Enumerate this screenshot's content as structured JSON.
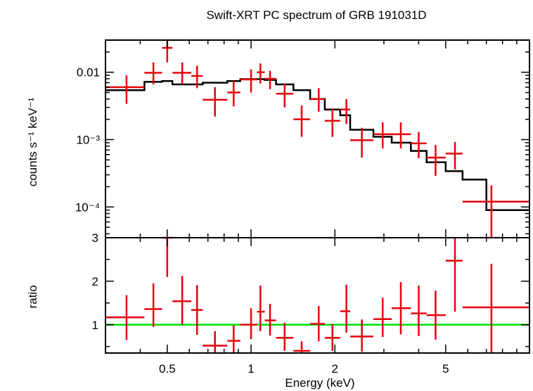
{
  "chart_data": [
    {
      "type": "scatter",
      "panel": "spectrum",
      "title": "Swift-XRT PC spectrum of GRB 191031D",
      "xlabel": "Energy (keV)",
      "ylabel": "counts s⁻¹ keV⁻¹",
      "xscale": "log",
      "yscale": "log",
      "xlim": [
        0.3,
        10
      ],
      "ylim": [
        3.5e-05,
        0.03
      ],
      "x_tick_labels": [
        "0.5",
        "1",
        "2",
        "5"
      ],
      "x_tick_values": [
        0.5,
        1,
        2,
        5
      ],
      "y_tick_labels": [
        "0.01",
        "10⁻³",
        "10⁻⁴"
      ],
      "y_tick_values": [
        0.01,
        0.001,
        0.0001
      ],
      "series": [
        {
          "kind": "data",
          "color": "#e8000b",
          "points": [
            {
              "x": 0.357,
              "xlo": 0.3,
              "xhi": 0.414,
              "y": 0.006,
              "ylo": 0.0034,
              "yhi": 0.009
            },
            {
              "x": 0.446,
              "xlo": 0.414,
              "xhi": 0.479,
              "y": 0.0098,
              "ylo": 0.0066,
              "yhi": 0.014
            },
            {
              "x": 0.5,
              "xlo": 0.479,
              "xhi": 0.522,
              "y": 0.023,
              "ylo": 0.014,
              "yhi": 0.031
            },
            {
              "x": 0.566,
              "xlo": 0.522,
              "xhi": 0.61,
              "y": 0.0098,
              "ylo": 0.0066,
              "yhi": 0.014
            },
            {
              "x": 0.64,
              "xlo": 0.61,
              "xhi": 0.67,
              "y": 0.0088,
              "ylo": 0.0058,
              "yhi": 0.0125
            },
            {
              "x": 0.742,
              "xlo": 0.67,
              "xhi": 0.822,
              "y": 0.0039,
              "ylo": 0.0022,
              "yhi": 0.006
            },
            {
              "x": 0.866,
              "xlo": 0.822,
              "xhi": 0.915,
              "y": 0.005,
              "ylo": 0.0031,
              "yhi": 0.0075
            },
            {
              "x": 1.0,
              "xlo": 0.915,
              "xhi": 1.05,
              "y": 0.0078,
              "ylo": 0.005,
              "yhi": 0.011
            },
            {
              "x": 1.08,
              "xlo": 1.05,
              "xhi": 1.12,
              "y": 0.01,
              "ylo": 0.0068,
              "yhi": 0.0135
            },
            {
              "x": 1.17,
              "xlo": 1.12,
              "xhi": 1.23,
              "y": 0.008,
              "ylo": 0.0056,
              "yhi": 0.0105
            },
            {
              "x": 1.32,
              "xlo": 1.23,
              "xhi": 1.42,
              "y": 0.0048,
              "ylo": 0.003,
              "yhi": 0.0068
            },
            {
              "x": 1.52,
              "xlo": 1.42,
              "xhi": 1.63,
              "y": 0.002,
              "ylo": 0.0011,
              "yhi": 0.0032
            },
            {
              "x": 1.75,
              "xlo": 1.63,
              "xhi": 1.84,
              "y": 0.004,
              "ylo": 0.0026,
              "yhi": 0.0058
            },
            {
              "x": 1.96,
              "xlo": 1.84,
              "xhi": 2.09,
              "y": 0.0019,
              "ylo": 0.0011,
              "yhi": 0.0029
            },
            {
              "x": 2.2,
              "xlo": 2.09,
              "xhi": 2.27,
              "y": 0.0028,
              "ylo": 0.0017,
              "yhi": 0.004
            },
            {
              "x": 2.5,
              "xlo": 2.27,
              "xhi": 2.75,
              "y": 0.00098,
              "ylo": 0.00054,
              "yhi": 0.0015
            },
            {
              "x": 2.97,
              "xlo": 2.75,
              "xhi": 3.2,
              "y": 0.0012,
              "ylo": 0.00074,
              "yhi": 0.0018
            },
            {
              "x": 3.45,
              "xlo": 3.2,
              "xhi": 3.75,
              "y": 0.0012,
              "ylo": 0.00074,
              "yhi": 0.0018
            },
            {
              "x": 4.0,
              "xlo": 3.75,
              "xhi": 4.27,
              "y": 0.00088,
              "ylo": 0.00053,
              "yhi": 0.0013
            },
            {
              "x": 4.6,
              "xlo": 4.27,
              "xhi": 5.0,
              "y": 0.00054,
              "ylo": 0.00029,
              "yhi": 0.00083
            },
            {
              "x": 5.4,
              "xlo": 5.0,
              "xhi": 5.75,
              "y": 0.00062,
              "ylo": 0.00036,
              "yhi": 0.00092
            },
            {
              "x": 7.3,
              "xlo": 5.75,
              "xhi": 10.0,
              "y": 0.00012,
              "ylo": 3.5e-05,
              "yhi": 0.00021
            }
          ]
        },
        {
          "kind": "model",
          "color": "#000000",
          "steps": [
            [
              0.3,
              0.0054
            ],
            [
              0.414,
              0.0072
            ],
            [
              0.479,
              0.0074
            ],
            [
              0.522,
              0.0066
            ],
            [
              0.67,
              0.007
            ],
            [
              0.822,
              0.0074
            ],
            [
              0.915,
              0.0079
            ],
            [
              1.12,
              0.0077
            ],
            [
              1.23,
              0.0066
            ],
            [
              1.42,
              0.0054
            ],
            [
              1.63,
              0.004
            ],
            [
              1.84,
              0.0028
            ],
            [
              2.09,
              0.0023
            ],
            [
              2.27,
              0.0014
            ],
            [
              2.75,
              0.0011
            ],
            [
              3.2,
              0.0009
            ],
            [
              3.75,
              0.00068
            ],
            [
              4.27,
              0.00046
            ],
            [
              5.0,
              0.00034
            ],
            [
              5.75,
              0.000255
            ],
            [
              7.0,
              9e-05
            ],
            [
              10.0,
              9e-05
            ]
          ]
        }
      ]
    },
    {
      "type": "scatter",
      "panel": "ratio",
      "xlabel": "Energy (keV)",
      "ylabel": "ratio",
      "xscale": "log",
      "yscale": "linear",
      "xlim": [
        0.3,
        10
      ],
      "ylim": [
        0.35,
        3.0
      ],
      "y_tick_labels": [
        "1",
        "2",
        "3"
      ],
      "y_tick_values": [
        1,
        2,
        3
      ],
      "reference_line": {
        "y": 1,
        "color": "#00e000"
      },
      "series": [
        {
          "kind": "ratio",
          "color": "#e8000b",
          "points": [
            {
              "x": 0.357,
              "xlo": 0.3,
              "xhi": 0.414,
              "y": 1.17,
              "ylo": 0.65,
              "yhi": 1.68
            },
            {
              "x": 0.446,
              "xlo": 0.414,
              "xhi": 0.479,
              "y": 1.36,
              "ylo": 0.95,
              "yhi": 1.95
            },
            {
              "x": 0.5,
              "xlo": 0.479,
              "xhi": 0.522,
              "y": 3.0,
              "ylo": 2.1,
              "yhi": 3.0
            },
            {
              "x": 0.566,
              "xlo": 0.522,
              "xhi": 0.61,
              "y": 1.54,
              "ylo": 1.0,
              "yhi": 2.12
            },
            {
              "x": 0.64,
              "xlo": 0.61,
              "xhi": 0.67,
              "y": 1.34,
              "ylo": 0.77,
              "yhi": 1.91
            },
            {
              "x": 0.742,
              "xlo": 0.67,
              "xhi": 0.822,
              "y": 0.52,
              "ylo": 0.35,
              "yhi": 0.85
            },
            {
              "x": 0.866,
              "xlo": 0.822,
              "xhi": 0.915,
              "y": 0.63,
              "ylo": 0.35,
              "yhi": 0.98
            },
            {
              "x": 1.0,
              "xlo": 0.915,
              "xhi": 1.05,
              "y": 1.0,
              "ylo": 0.67,
              "yhi": 1.38
            },
            {
              "x": 1.08,
              "xlo": 1.05,
              "xhi": 1.12,
              "y": 1.3,
              "ylo": 0.85,
              "yhi": 1.9
            },
            {
              "x": 1.17,
              "xlo": 1.12,
              "xhi": 1.23,
              "y": 1.1,
              "ylo": 0.75,
              "yhi": 1.48
            },
            {
              "x": 1.32,
              "xlo": 1.23,
              "xhi": 1.42,
              "y": 0.7,
              "ylo": 0.4,
              "yhi": 1.05
            },
            {
              "x": 1.52,
              "xlo": 1.42,
              "xhi": 1.63,
              "y": 0.4,
              "ylo": 0.35,
              "yhi": 0.62
            },
            {
              "x": 1.75,
              "xlo": 1.63,
              "xhi": 1.84,
              "y": 1.02,
              "ylo": 0.62,
              "yhi": 1.43
            },
            {
              "x": 1.96,
              "xlo": 1.84,
              "xhi": 2.09,
              "y": 0.7,
              "ylo": 0.4,
              "yhi": 1.02
            },
            {
              "x": 2.2,
              "xlo": 2.09,
              "xhi": 2.27,
              "y": 1.31,
              "ylo": 0.82,
              "yhi": 1.92
            },
            {
              "x": 2.5,
              "xlo": 2.27,
              "xhi": 2.75,
              "y": 0.73,
              "ylo": 0.38,
              "yhi": 1.12
            },
            {
              "x": 2.97,
              "xlo": 2.75,
              "xhi": 3.2,
              "y": 1.13,
              "ylo": 0.72,
              "yhi": 1.62
            },
            {
              "x": 3.45,
              "xlo": 3.2,
              "xhi": 3.75,
              "y": 1.38,
              "ylo": 0.78,
              "yhi": 1.98
            },
            {
              "x": 4.0,
              "xlo": 3.75,
              "xhi": 4.27,
              "y": 1.26,
              "ylo": 0.74,
              "yhi": 1.9
            },
            {
              "x": 4.6,
              "xlo": 4.27,
              "xhi": 5.0,
              "y": 1.22,
              "ylo": 0.66,
              "yhi": 1.78
            },
            {
              "x": 5.4,
              "xlo": 5.0,
              "xhi": 5.75,
              "y": 2.47,
              "ylo": 1.3,
              "yhi": 3.0
            },
            {
              "x": 7.3,
              "xlo": 5.75,
              "xhi": 10.0,
              "y": 1.4,
              "ylo": 0.35,
              "yhi": 2.4
            }
          ]
        }
      ]
    }
  ]
}
